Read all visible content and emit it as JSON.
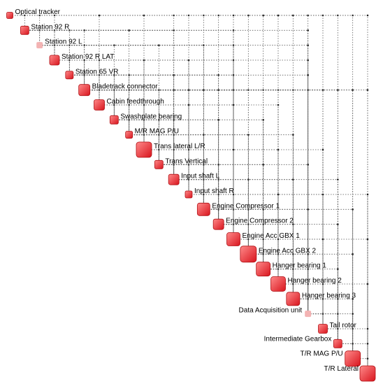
{
  "colors": {
    "node_light": "#ff8a8a",
    "node_dark": "#d8141d",
    "node_border": "#b01015",
    "faint_node": "#f3b3b3",
    "line": "#5a5a5a"
  },
  "nodes": [
    {
      "label": "Optical tracker",
      "weight": 0.15
    },
    {
      "label": "Station 92 R",
      "weight": 0.3
    },
    {
      "label": "Station 92 L",
      "weight": 0.15,
      "faint": true
    },
    {
      "label": "Station 92 R LAT",
      "weight": 0.4
    },
    {
      "label": "Station 65 VR",
      "weight": 0.25
    },
    {
      "label": "Bladetrack connector",
      "weight": 0.5
    },
    {
      "label": "Cabin feedthrough",
      "weight": 0.45
    },
    {
      "label": "Swashplate bearing",
      "weight": 0.3
    },
    {
      "label": "M/R MAG P/U",
      "weight": 0.2
    },
    {
      "label": "Trans lateral L/R",
      "weight": 0.8
    },
    {
      "label": "Trans Vertical",
      "weight": 0.3
    },
    {
      "label": "Input shaft L",
      "weight": 0.45
    },
    {
      "label": "Input shaft R",
      "weight": 0.2
    },
    {
      "label": "Engine Compressor 1",
      "weight": 0.6
    },
    {
      "label": "Engine Compressor 2",
      "weight": 0.45
    },
    {
      "label": "Engine Acc GBX 1",
      "weight": 0.65
    },
    {
      "label": "Engine Acc GBX 2",
      "weight": 0.85
    },
    {
      "label": "Hanger bearing 1",
      "weight": 0.7
    },
    {
      "label": "Hanger bearing 2",
      "weight": 0.75
    },
    {
      "label": "Hanger bearing 3",
      "weight": 0.65
    },
    {
      "label": "Data Acquisition unit",
      "weight": 0.15,
      "faint": true
    },
    {
      "label": "Tail rotor",
      "weight": 0.35
    },
    {
      "label": "Intermediate Gearbox",
      "weight": 0.3
    },
    {
      "label": "T/R MAG P/U",
      "weight": 0.8
    },
    {
      "label": "T/R Lateral",
      "weight": 0.8
    }
  ]
}
